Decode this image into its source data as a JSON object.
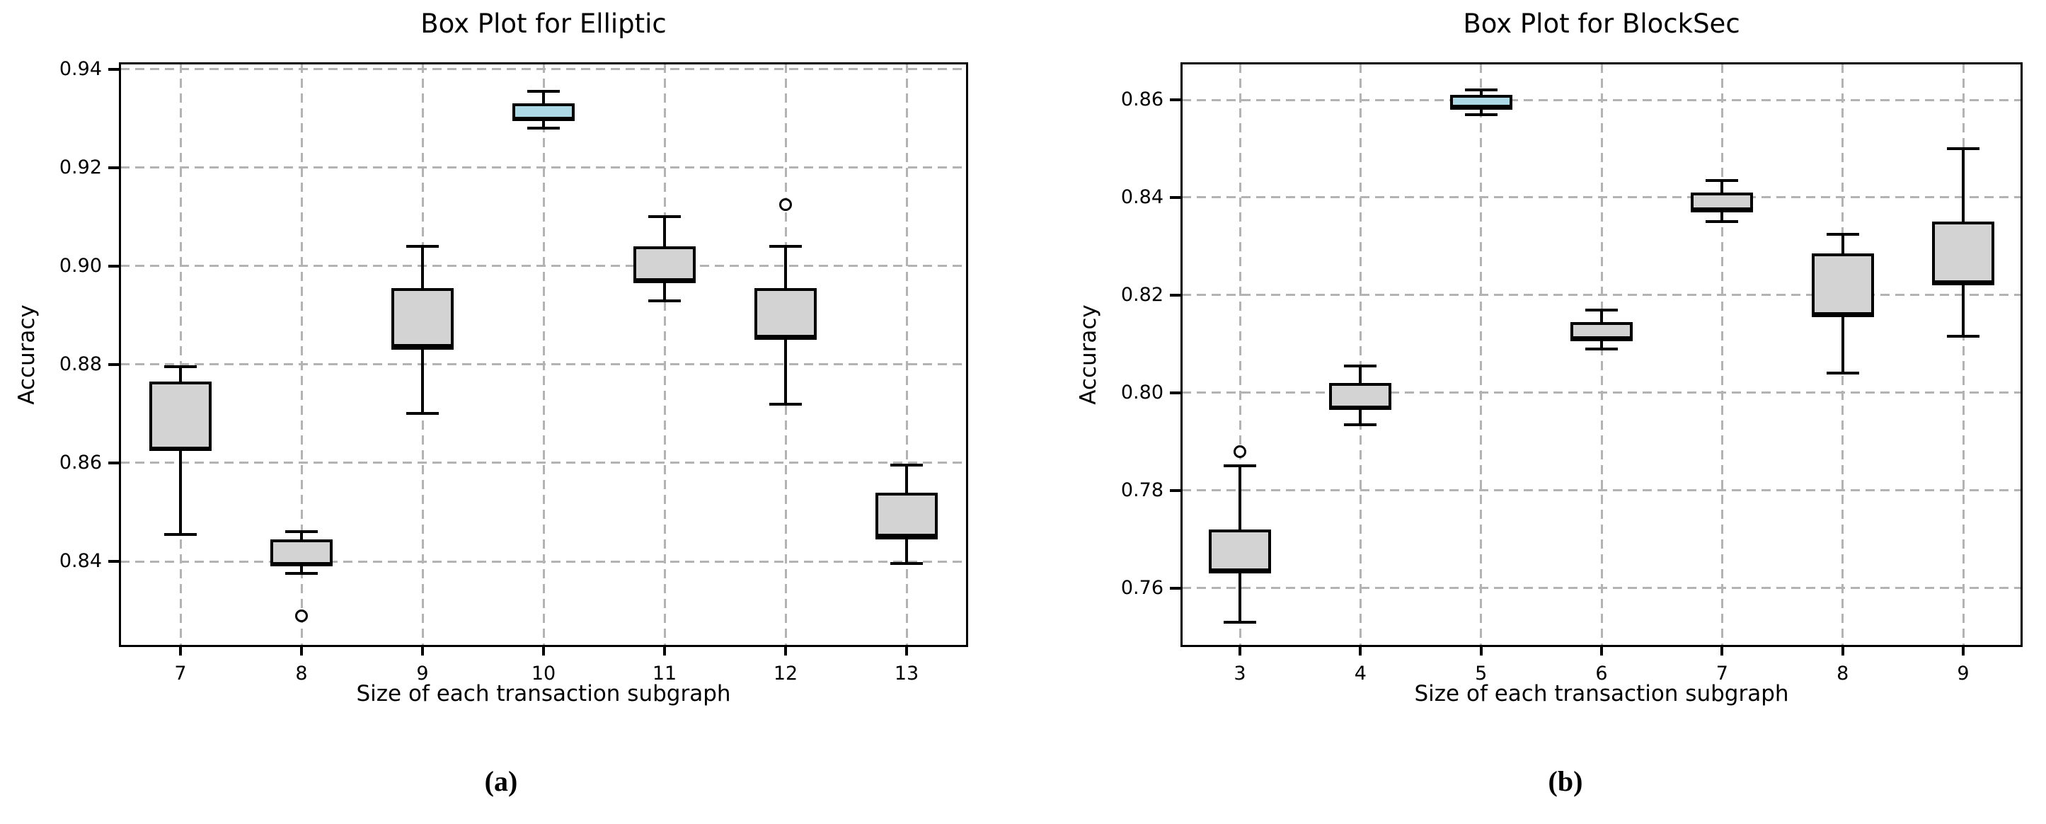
{
  "figure": {
    "captions": [
      "(a)",
      "(b)"
    ]
  },
  "chart_data": [
    {
      "type": "box",
      "title": "Box Plot for Elliptic",
      "xlabel": "Size of each transaction subgraph",
      "ylabel": "Accuracy",
      "categories": [
        "7",
        "8",
        "9",
        "10",
        "11",
        "12",
        "13"
      ],
      "yticks": [
        "0.84",
        "0.86",
        "0.88",
        "0.90",
        "0.92",
        "0.94"
      ],
      "ylim": [
        0.8226,
        0.9414
      ],
      "grid": true,
      "legend": "none",
      "box_color": "#d3d3d3",
      "highlight_color": "#add8e6",
      "edge_color": "#000000",
      "grid_color": "#b3b3b3",
      "boxes": [
        {
          "category": "7",
          "whisker_low": 0.8455,
          "q1": 0.8625,
          "median": 0.863,
          "q3": 0.8765,
          "whisker_high": 0.8795,
          "outliers": [],
          "highlight": false
        },
        {
          "category": "8",
          "whisker_low": 0.8375,
          "q1": 0.839,
          "median": 0.8395,
          "q3": 0.8445,
          "whisker_high": 0.846,
          "outliers": [
            0.829
          ],
          "highlight": false
        },
        {
          "category": "9",
          "whisker_low": 0.87,
          "q1": 0.883,
          "median": 0.8838,
          "q3": 0.8955,
          "whisker_high": 0.904,
          "outliers": [],
          "highlight": false
        },
        {
          "category": "10",
          "whisker_low": 0.928,
          "q1": 0.9295,
          "median": 0.93,
          "q3": 0.933,
          "whisker_high": 0.9355,
          "outliers": [],
          "highlight": true
        },
        {
          "category": "11",
          "whisker_low": 0.893,
          "q1": 0.8965,
          "median": 0.8972,
          "q3": 0.904,
          "whisker_high": 0.91,
          "outliers": [],
          "highlight": false
        },
        {
          "category": "12",
          "whisker_low": 0.872,
          "q1": 0.885,
          "median": 0.8857,
          "q3": 0.8955,
          "whisker_high": 0.904,
          "outliers": [
            0.9125
          ],
          "highlight": false
        },
        {
          "category": "13",
          "whisker_low": 0.8395,
          "q1": 0.8445,
          "median": 0.8452,
          "q3": 0.854,
          "whisker_high": 0.8595,
          "outliers": [],
          "highlight": false
        }
      ]
    },
    {
      "type": "box",
      "title": "Box Plot for BlockSec",
      "xlabel": "Size of each transaction subgraph",
      "ylabel": "Accuracy",
      "categories": [
        "3",
        "4",
        "5",
        "6",
        "7",
        "8",
        "9"
      ],
      "yticks": [
        "0.76",
        "0.78",
        "0.80",
        "0.82",
        "0.84",
        "0.86"
      ],
      "ylim": [
        0.7479,
        0.8677
      ],
      "grid": true,
      "legend": "none",
      "box_color": "#d3d3d3",
      "highlight_color": "#add8e6",
      "edge_color": "#000000",
      "grid_color": "#b3b3b3",
      "boxes": [
        {
          "category": "3",
          "whisker_low": 0.753,
          "q1": 0.763,
          "median": 0.7636,
          "q3": 0.772,
          "whisker_high": 0.785,
          "outliers": [
            0.788
          ],
          "highlight": false
        },
        {
          "category": "4",
          "whisker_low": 0.7935,
          "q1": 0.7965,
          "median": 0.797,
          "q3": 0.802,
          "whisker_high": 0.8055,
          "outliers": [],
          "highlight": false
        },
        {
          "category": "5",
          "whisker_low": 0.857,
          "q1": 0.858,
          "median": 0.8586,
          "q3": 0.861,
          "whisker_high": 0.862,
          "outliers": [],
          "highlight": true
        },
        {
          "category": "6",
          "whisker_low": 0.809,
          "q1": 0.8105,
          "median": 0.8112,
          "q3": 0.8145,
          "whisker_high": 0.817,
          "outliers": [],
          "highlight": false
        },
        {
          "category": "7",
          "whisker_low": 0.835,
          "q1": 0.837,
          "median": 0.8376,
          "q3": 0.841,
          "whisker_high": 0.8435,
          "outliers": [],
          "highlight": false
        },
        {
          "category": "8",
          "whisker_low": 0.804,
          "q1": 0.8155,
          "median": 0.8162,
          "q3": 0.8285,
          "whisker_high": 0.8325,
          "outliers": [],
          "highlight": false
        },
        {
          "category": "9",
          "whisker_low": 0.8115,
          "q1": 0.822,
          "median": 0.8227,
          "q3": 0.835,
          "whisker_high": 0.85,
          "outliers": [],
          "highlight": false
        }
      ]
    }
  ]
}
